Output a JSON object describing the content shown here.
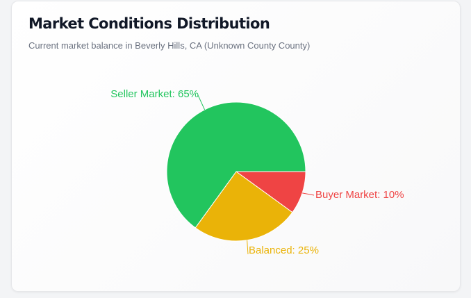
{
  "card": {
    "title": "Market Conditions Distribution",
    "subtitle": "Current market balance in Beverly Hills, CA (Unknown County County)"
  },
  "chart_data": {
    "type": "pie",
    "title": "Market Conditions Distribution",
    "subtitle": "Current market balance in Beverly Hills, CA (Unknown County County)",
    "categories": [
      "Buyer Market",
      "Balanced",
      "Seller Market"
    ],
    "values": [
      10,
      25,
      65
    ],
    "labels": [
      "Buyer Market: 10%",
      "Balanced: 25%",
      "Seller Market: 65%"
    ],
    "colors": [
      "#ef4444",
      "#eab308",
      "#22c55e"
    ],
    "start_direction": "east (3 o'clock), clockwise",
    "legend": "none"
  }
}
